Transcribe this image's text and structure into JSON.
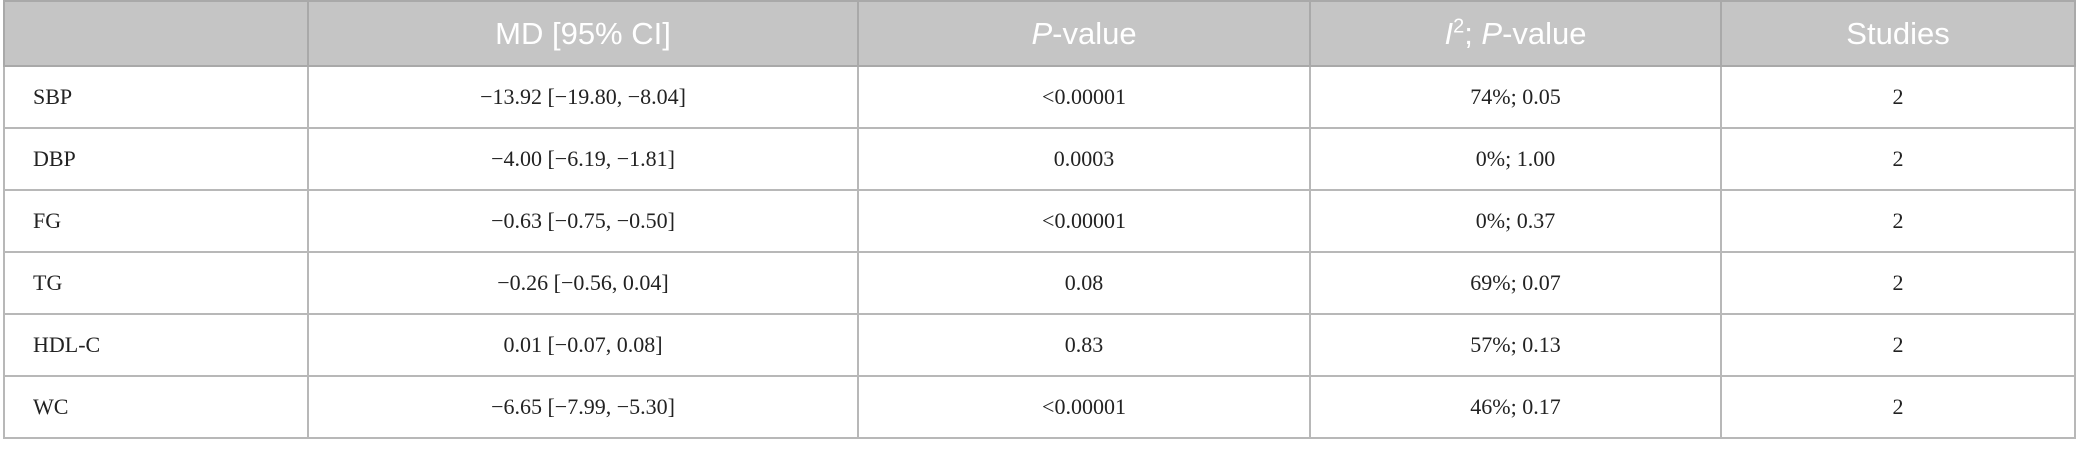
{
  "table": {
    "header": [
      [
        {
          "text": "MD [95% CI]"
        }
      ],
      [
        {
          "text": "P",
          "style": "italic"
        },
        {
          "text": "-value"
        }
      ],
      [
        {
          "text": "I",
          "style": "italic"
        },
        {
          "text": "2",
          "style": "sup"
        },
        {
          "text": "; "
        },
        {
          "text": "P",
          "style": "italic"
        },
        {
          "text": "-value"
        }
      ],
      [
        {
          "text": "Studies"
        }
      ]
    ],
    "rows": [
      [
        "SBP",
        "−13.92 [−19.80, −8.04]",
        "<0.00001",
        "74%; 0.05",
        "2"
      ],
      [
        "DBP",
        "−4.00 [−6.19, −1.81]",
        "0.0003",
        "0%; 1.00",
        "2"
      ],
      [
        "FG",
        "−0.63 [−0.75, −0.50]",
        "<0.00001",
        "0%; 0.37",
        "2"
      ],
      [
        "TG",
        "−0.26 [−0.56, 0.04]",
        "0.08",
        "69%; 0.07",
        "2"
      ],
      [
        "HDL-C",
        "0.01 [−0.07, 0.08]",
        "0.83",
        "57%; 0.13",
        "2"
      ],
      [
        "WC",
        "−6.65 [−7.99, −5.30]",
        "<0.00001",
        "46%; 0.17",
        "2"
      ]
    ]
  }
}
